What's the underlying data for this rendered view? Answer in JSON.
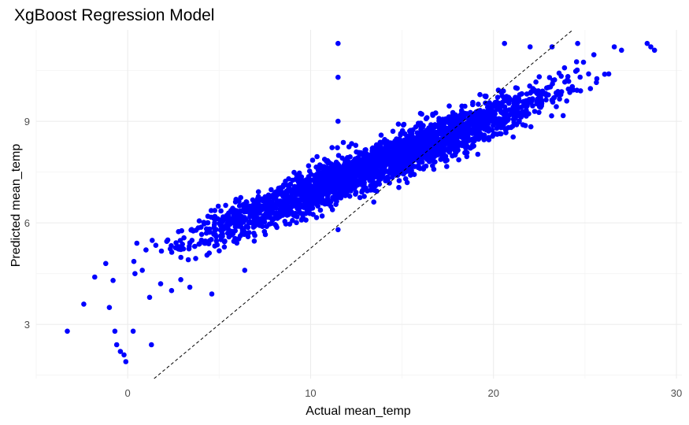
{
  "chart_data": {
    "type": "scatter",
    "title": "XgBoost Regression Model",
    "xlabel": "Actual mean_temp",
    "ylabel": "Predicted mean_temp",
    "xlim": [
      -5,
      30.3
    ],
    "ylim": [
      1.4,
      11.7
    ],
    "x_ticks": [
      0,
      10,
      20,
      30
    ],
    "y_ticks": [
      3,
      6,
      9
    ],
    "grid": true,
    "point_color": "#0000ff",
    "reference_line": {
      "style": "dashed",
      "color": "#000000",
      "slope": 0.45,
      "intercept": 0.75,
      "x_range": [
        1.4,
        11.7
      ]
    },
    "trend": {
      "intercept": 4.75,
      "slope": 0.218,
      "x_min": -0.5,
      "x_max": 27.5,
      "noise_sd": 0.32,
      "n_points": 2600
    },
    "points": [
      [
        -3.3,
        2.8
      ],
      [
        -2.4,
        3.6
      ],
      [
        -1.8,
        4.4
      ],
      [
        -1.2,
        4.8
      ],
      [
        -1.0,
        3.5
      ],
      [
        -0.8,
        4.3
      ],
      [
        -0.7,
        2.8
      ],
      [
        -0.6,
        2.4
      ],
      [
        -0.4,
        2.2
      ],
      [
        -0.2,
        2.1
      ],
      [
        -0.1,
        1.9
      ],
      [
        0.3,
        2.8
      ],
      [
        1.3,
        2.4
      ],
      [
        0.4,
        4.5
      ],
      [
        0.8,
        4.6
      ],
      [
        1.2,
        3.8
      ],
      [
        0.5,
        5.4
      ],
      [
        1.0,
        5.2
      ],
      [
        1.8,
        4.2
      ],
      [
        2.4,
        4.0
      ],
      [
        3.4,
        4.1
      ],
      [
        4.6,
        3.9
      ],
      [
        6.4,
        4.6
      ],
      [
        11.5,
        11.3
      ],
      [
        11.5,
        10.3
      ],
      [
        11.5,
        9.0
      ],
      [
        11.5,
        5.8
      ],
      [
        15.2,
        7.3
      ],
      [
        16.8,
        7.8
      ],
      [
        17.3,
        8.3
      ],
      [
        17.9,
        8.0
      ],
      [
        19.2,
        8.5
      ],
      [
        20.5,
        9.0
      ],
      [
        23.0,
        10.0
      ],
      [
        24.0,
        9.6
      ],
      [
        25.2,
        10.4
      ],
      [
        26.3,
        10.4
      ],
      [
        26.6,
        11.2
      ],
      [
        27.0,
        11.1
      ],
      [
        28.4,
        11.3
      ],
      [
        28.6,
        11.2
      ],
      [
        28.8,
        11.1
      ],
      [
        20.6,
        11.3
      ],
      [
        22.0,
        11.2
      ],
      [
        23.2,
        11.2
      ],
      [
        24.6,
        11.3
      ],
      [
        20.6,
        9.3
      ],
      [
        12.5,
        7.2
      ],
      [
        13.0,
        8.0
      ],
      [
        8.8,
        7.3
      ]
    ]
  }
}
